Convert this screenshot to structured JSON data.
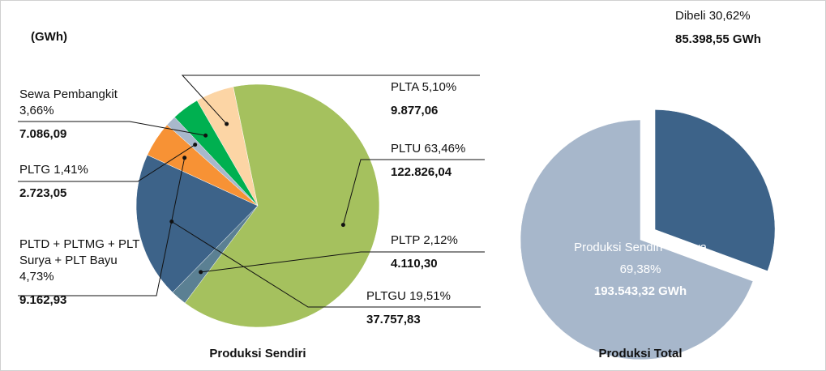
{
  "chart_data": [
    {
      "type": "pie",
      "unit_label": "(GWh)",
      "title": "Produksi Sendiri",
      "categories": [
        "PLTA",
        "PLTU",
        "PLTP",
        "PLTGU",
        "PLTD + PLTMG + PLT Surya + PLT Bayu",
        "PLTG",
        "Sewa Pembangkit"
      ],
      "values": [
        9877.06,
        122826.04,
        4110.3,
        37757.83,
        9162.93,
        2723.05,
        7086.09
      ],
      "value_labels": [
        "9.877,06",
        "122.826,04",
        "4.110,30",
        "37.757,83",
        "9.162,93",
        "2.723,05",
        "7.086,09"
      ],
      "percent_labels": [
        "5,10%",
        "63,46%",
        "2,12%",
        "19,51%",
        "4,73%",
        "1,41%",
        "3,66%"
      ],
      "colors": [
        "#fcd5a5",
        "#a5c15e",
        "#5b8093",
        "#3d6389",
        "#f79235",
        "#a8b8cb",
        "#00b050"
      ]
    },
    {
      "type": "pie",
      "title": "Produksi Total",
      "categories": [
        "Dibeli",
        "Produksi Sendiri + Sewa"
      ],
      "values": [
        85398.55,
        193543.32
      ],
      "value_labels": [
        "85.398,55 GWh",
        "193.543,32 GWh"
      ],
      "percent_labels": [
        "30,62%",
        "69,38%"
      ],
      "colors": [
        "#3d6389",
        "#a7b7cb"
      ],
      "exploded": [
        true,
        false
      ]
    }
  ]
}
